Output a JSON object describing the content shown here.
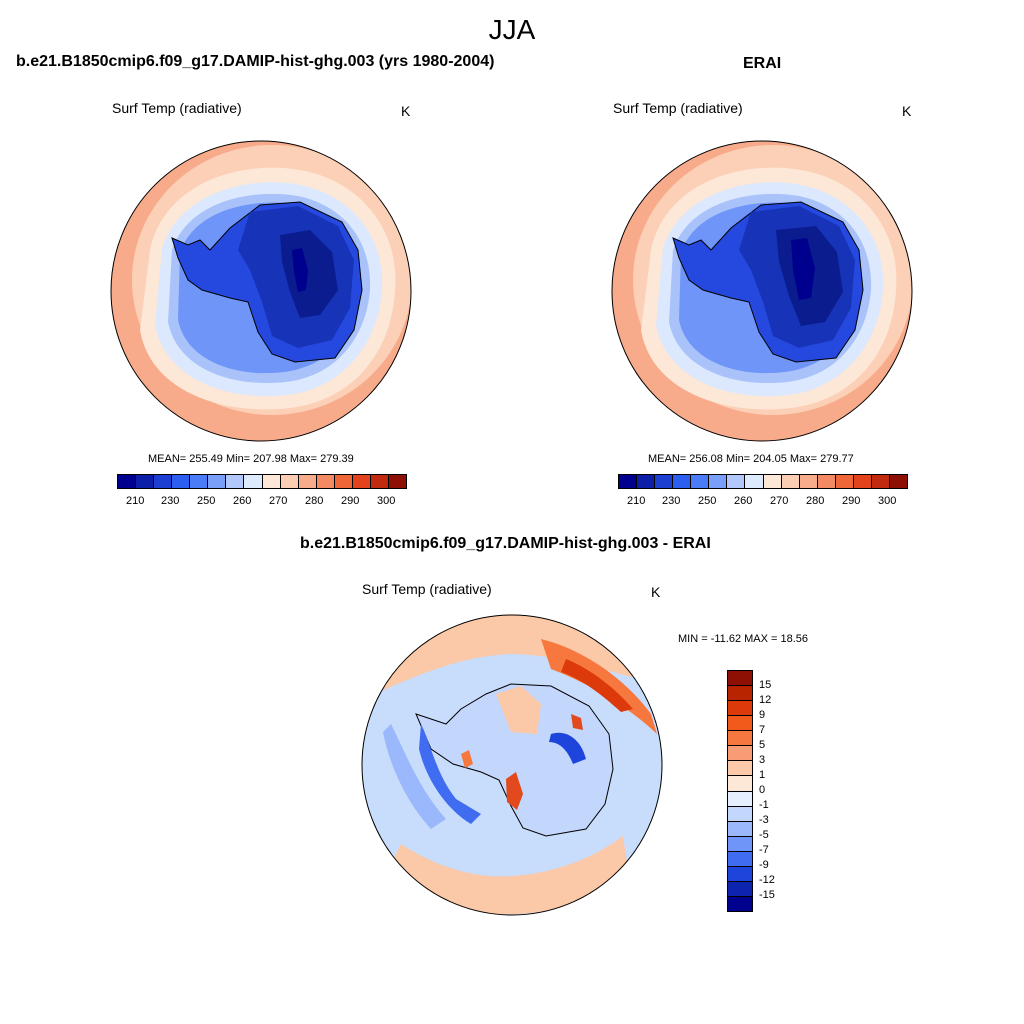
{
  "figure": {
    "title": "JJA"
  },
  "panel_left": {
    "title": "b.e21.B1850cmip6.f09_g17.DAMIP-hist-ghg.003 (yrs 1980-2004)",
    "variable": "Surf Temp (radiative)",
    "units": "K",
    "stats": "MEAN= 255.49  Min= 207.98  Max= 279.39",
    "mean": 255.49,
    "min": 207.98,
    "max": 279.39
  },
  "panel_right": {
    "title": "ERAI",
    "variable": "Surf Temp (radiative)",
    "units": "K",
    "stats": "MEAN= 256.08  Min= 204.05  Max= 279.77",
    "mean": 256.08,
    "min": 204.05,
    "max": 279.77
  },
  "panel_diff": {
    "title": "b.e21.B1850cmip6.f09_g17.DAMIP-hist-ghg.003 - ERAI",
    "variable": "Surf Temp (radiative)",
    "units": "K",
    "minmax": "MIN = -11.62 MAX =  18.56",
    "min": -11.62,
    "max": 18.56
  },
  "abs_colorbar": {
    "labels": [
      "210",
      "230",
      "250",
      "260",
      "270",
      "280",
      "290",
      "300"
    ],
    "colors": [
      "#00008f",
      "#0b1fa8",
      "#1c3fd1",
      "#2c5ef0",
      "#4a7cf7",
      "#7a9ff8",
      "#b2c8fb",
      "#ddeafd",
      "#fde7d6",
      "#fbcdb2",
      "#f7ad8c",
      "#f38a63",
      "#ef6739",
      "#e2431d",
      "#c22a10",
      "#8e1004"
    ]
  },
  "diff_colorbar": {
    "labels": [
      "15",
      "12",
      "9",
      "7",
      "5",
      "3",
      "1",
      "0",
      "-1",
      "-3",
      "-5",
      "-7",
      "-9",
      "-12",
      "-15"
    ],
    "colors": [
      "#8e1004",
      "#b82300",
      "#dc3a0a",
      "#f25a1c",
      "#f7783f",
      "#f89c75",
      "#fbc8a8",
      "#fde8d8",
      "#e6efff",
      "#c3d6fb",
      "#9ab8fb",
      "#6f95f8",
      "#3f6cf0",
      "#1d45dc",
      "#0c24b0",
      "#00008f"
    ]
  },
  "map_palette": {
    "ocean_warm": "#f7ab8b",
    "ocean_mid": "#fbd0b6",
    "ice_edge": "#dbe8fd",
    "ice_light": "#a9c3fa",
    "ice_mid": "#5e86f2",
    "land_cold": "#2549df",
    "land_colder": "#1733b8",
    "land_coldest": "#0b1d8e",
    "diff_base": "#c8dcfb",
    "diff_warm": "#fbc8a8",
    "diff_hot": "#e24a1e",
    "diff_cool": "#4d78f2"
  }
}
